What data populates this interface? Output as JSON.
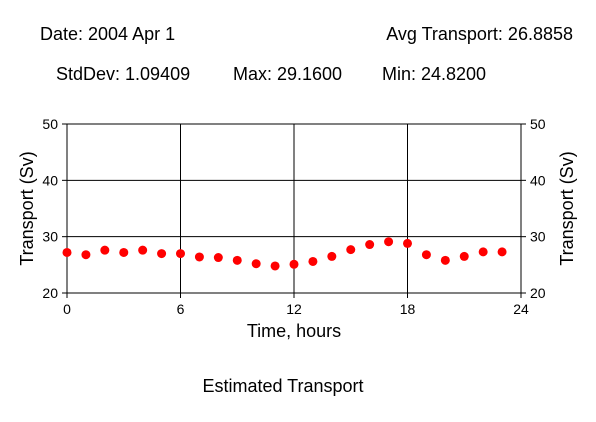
{
  "header": {
    "date": "Date: 2004 Apr 1",
    "avg": "Avg Transport: 26.8858",
    "stddev": "StdDev: 1.09409",
    "max": "Max: 29.1600",
    "min": "Min: 24.8200"
  },
  "footer": {
    "caption": "Estimated Transport"
  },
  "chart_data": {
    "type": "scatter",
    "xlabel": "Time, hours",
    "ylabel": "Transport (Sv)",
    "xlim": [
      0,
      24
    ],
    "ylim": [
      20,
      50
    ],
    "x_ticks": [
      0,
      6,
      12,
      18,
      24
    ],
    "y_ticks": [
      20,
      30,
      40,
      50
    ],
    "grid": true,
    "marker_color": "#ff0000",
    "series": [
      {
        "x": [
          0,
          1,
          2,
          3,
          4,
          5,
          6,
          7,
          8,
          9,
          10,
          11,
          12,
          13,
          14,
          15,
          16,
          17,
          18,
          19,
          20,
          21,
          22,
          23
        ],
        "y": [
          27.2,
          26.8,
          27.6,
          27.2,
          27.6,
          27.0,
          27.0,
          26.4,
          26.3,
          25.8,
          25.2,
          24.8,
          25.1,
          25.6,
          26.5,
          27.7,
          28.6,
          29.1,
          28.8,
          26.8,
          25.8,
          26.5,
          27.3,
          27.3
        ]
      }
    ]
  }
}
